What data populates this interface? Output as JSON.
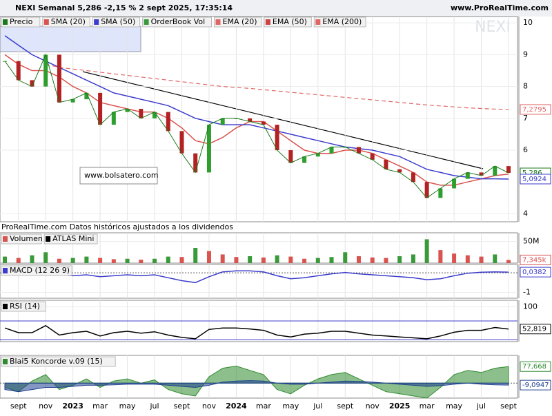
{
  "header": {
    "title": "NEXI Semanal 5,286 -2,15 % 2 sept 2025, 17:35:14",
    "site": "www.ProRealTime.com",
    "watermark": "NEXI"
  },
  "chart_data": [
    {
      "type": "price",
      "orderbook_label": "OrderBook Vol",
      "annotations": [
        "www.bolsatero.com",
        "ProRealTime.com Datos históricos ajustados a los dividendos"
      ],
      "categories": [
        null,
        "sept",
        null,
        "nov",
        null,
        "2023",
        null,
        "mar",
        null,
        "may",
        null,
        "jul",
        null,
        "sept",
        null,
        "nov",
        null,
        "2024",
        null,
        "mar",
        null,
        "may",
        null,
        "jul",
        null,
        "sept",
        null,
        "nov",
        null,
        "2025",
        null,
        "mar",
        null,
        "may",
        null,
        "jul",
        null,
        "sept"
      ],
      "ylim": [
        3.75,
        10.2
      ],
      "yticks": [
        4,
        6,
        7,
        8,
        9,
        10
      ],
      "series": [
        {
          "name": "Precio",
          "color": "#1a7a1a",
          "values": [
            8.8,
            8.2,
            8.0,
            9.0,
            7.5,
            7.6,
            7.8,
            6.8,
            7.2,
            7.3,
            7.0,
            7.2,
            6.6,
            5.9,
            5.3,
            6.8,
            7.0,
            7.0,
            6.9,
            6.8,
            6.0,
            5.6,
            5.8,
            5.9,
            6.1,
            6.1,
            5.9,
            5.7,
            5.4,
            5.3,
            5.0,
            4.5,
            4.8,
            5.1,
            5.3,
            5.2,
            5.5,
            5.286
          ],
          "value_labels": [
            null,
            null,
            null,
            null,
            null,
            null,
            null,
            null,
            null,
            null,
            null,
            null,
            null,
            null,
            null,
            null,
            null,
            null,
            null,
            null,
            null,
            null,
            null,
            null,
            null,
            null,
            null,
            null,
            null,
            null,
            null,
            null,
            null,
            null,
            null,
            null,
            null,
            "5,286"
          ]
        },
        {
          "name": "SMA (20)",
          "color": "#d9534f",
          "values": [
            9.0,
            8.7,
            8.5,
            8.5,
            8.3,
            8.0,
            7.8,
            7.5,
            7.4,
            7.3,
            7.2,
            7.2,
            7.0,
            6.7,
            6.3,
            6.2,
            6.4,
            6.7,
            6.9,
            6.9,
            6.6,
            6.3,
            6.0,
            5.9,
            5.9,
            6.0,
            6.0,
            5.9,
            5.7,
            5.5,
            5.3,
            5.0,
            4.9,
            4.9,
            5.0,
            5.1,
            5.2,
            5.25
          ]
        },
        {
          "name": "SMA (50)",
          "color": "#3b3bcc",
          "values": [
            9.6,
            9.3,
            9.0,
            8.8,
            8.6,
            8.4,
            8.2,
            8.0,
            7.8,
            7.7,
            7.6,
            7.5,
            7.4,
            7.2,
            7.0,
            6.9,
            6.8,
            6.8,
            6.8,
            6.7,
            6.6,
            6.5,
            6.4,
            6.3,
            6.2,
            6.1,
            6.05,
            6.0,
            5.9,
            5.8,
            5.6,
            5.4,
            5.3,
            5.2,
            5.15,
            5.1,
            5.1,
            5.0924
          ],
          "value_labels": [
            null,
            null,
            null,
            null,
            null,
            null,
            null,
            null,
            null,
            null,
            null,
            null,
            null,
            null,
            null,
            null,
            null,
            null,
            null,
            null,
            null,
            null,
            null,
            null,
            null,
            null,
            null,
            null,
            null,
            null,
            null,
            null,
            null,
            null,
            null,
            null,
            null,
            "5,0924"
          ]
        },
        {
          "name": "EMA (20)",
          "color": "#e06666"
        },
        {
          "name": "EMA (50)",
          "color": "#cc4444"
        },
        {
          "name": "EMA (200)",
          "color": "#e06666",
          "dashed": true,
          "values": [
            null,
            null,
            null,
            8.7,
            8.6,
            8.55,
            8.5,
            8.45,
            8.4,
            8.35,
            8.3,
            8.25,
            8.2,
            8.15,
            8.1,
            8.05,
            8.0,
            7.97,
            7.94,
            7.9,
            7.86,
            7.82,
            7.78,
            7.74,
            7.7,
            7.66,
            7.62,
            7.58,
            7.54,
            7.5,
            7.46,
            7.42,
            7.39,
            7.36,
            7.33,
            7.31,
            7.29,
            7.2795
          ],
          "value_labels": [
            null,
            null,
            null,
            null,
            null,
            null,
            null,
            null,
            null,
            null,
            null,
            null,
            null,
            null,
            null,
            null,
            null,
            null,
            null,
            null,
            null,
            null,
            null,
            null,
            null,
            null,
            null,
            null,
            null,
            null,
            null,
            null,
            null,
            null,
            null,
            null,
            null,
            "7,2795"
          ]
        }
      ]
    },
    {
      "type": "bar",
      "legend": [
        "Volumen",
        "ATLAS Mini"
      ],
      "ylim": [
        0,
        70
      ],
      "yticks": [
        {
          "value": 50,
          "label": "50M"
        }
      ],
      "series": [
        {
          "color": "#d9534f",
          "values": [
            15,
            12,
            18,
            25,
            10,
            12,
            15,
            12,
            9,
            10,
            8,
            10,
            15,
            14,
            35,
            28,
            20,
            14,
            16,
            13,
            18,
            15,
            10,
            12,
            14,
            25,
            16,
            13,
            12,
            16,
            20,
            55,
            30,
            22,
            18,
            15,
            20,
            7.345
          ],
          "value_labels": [
            null,
            null,
            null,
            null,
            null,
            null,
            null,
            null,
            null,
            null,
            null,
            null,
            null,
            null,
            null,
            null,
            null,
            null,
            null,
            null,
            null,
            null,
            null,
            null,
            null,
            null,
            null,
            null,
            null,
            null,
            null,
            null,
            null,
            null,
            null,
            null,
            null,
            "7,345k"
          ]
        }
      ]
    },
    {
      "type": "line",
      "legend": [
        "MACD (12 26 9)"
      ],
      "ylim": [
        -1.3,
        0.43
      ],
      "yticks": [
        {
          "value": -1,
          "label": "-1"
        }
      ],
      "zero": true,
      "series": [
        {
          "color": "#3b3bcc",
          "values": [
            0.2,
            0.1,
            -0.05,
            0.1,
            -0.1,
            -0.15,
            -0.1,
            -0.2,
            -0.15,
            -0.1,
            -0.15,
            -0.1,
            -0.25,
            -0.4,
            -0.5,
            -0.2,
            0.05,
            0.1,
            0.1,
            0.05,
            -0.15,
            -0.3,
            -0.25,
            -0.15,
            -0.05,
            0.02,
            -0.05,
            -0.1,
            -0.15,
            -0.2,
            -0.25,
            -0.35,
            -0.3,
            -0.15,
            -0.02,
            0.03,
            0.05,
            0.0382
          ],
          "value_labels": [
            null,
            null,
            null,
            null,
            null,
            null,
            null,
            null,
            null,
            null,
            null,
            null,
            null,
            null,
            null,
            null,
            null,
            null,
            null,
            null,
            null,
            null,
            null,
            null,
            null,
            null,
            null,
            null,
            null,
            null,
            null,
            null,
            null,
            null,
            null,
            null,
            null,
            "0,0382"
          ]
        }
      ]
    },
    {
      "type": "line",
      "legend": [
        "RSI (14)"
      ],
      "ylim": [
        26,
        114
      ],
      "yticks": [
        100
      ],
      "bands": [
        30,
        70
      ],
      "series": [
        {
          "color": "#000000",
          "values": [
            55,
            45,
            45,
            60,
            40,
            45,
            48,
            38,
            45,
            48,
            44,
            47,
            40,
            35,
            32,
            52,
            55,
            55,
            53,
            50,
            40,
            36,
            42,
            44,
            48,
            48,
            44,
            40,
            38,
            36,
            34,
            32,
            38,
            46,
            50,
            50,
            56,
            52.819
          ],
          "value_labels": [
            null,
            null,
            null,
            null,
            null,
            null,
            null,
            null,
            null,
            null,
            null,
            null,
            null,
            null,
            null,
            null,
            null,
            null,
            null,
            null,
            null,
            null,
            null,
            null,
            null,
            null,
            null,
            null,
            null,
            null,
            null,
            null,
            null,
            null,
            null,
            null,
            null,
            "52,819"
          ]
        }
      ]
    },
    {
      "type": "area",
      "legend": [
        "Blai5 Koncorde v.09 (15)"
      ],
      "ylim": [
        -70,
        130
      ],
      "zero": true,
      "series": [
        {
          "color": "#2e8b2e",
          "values": [
            -20,
            -40,
            10,
            40,
            -30,
            -10,
            20,
            -20,
            10,
            20,
            0,
            15,
            -30,
            -50,
            -60,
            30,
            70,
            80,
            60,
            40,
            -30,
            -50,
            -10,
            20,
            40,
            50,
            20,
            -10,
            -40,
            -50,
            -60,
            -70,
            -20,
            40,
            60,
            50,
            70,
            77.668
          ],
          "value_labels": [
            null,
            null,
            null,
            null,
            null,
            null,
            null,
            null,
            null,
            null,
            null,
            null,
            null,
            null,
            null,
            null,
            null,
            null,
            null,
            null,
            null,
            null,
            null,
            null,
            null,
            null,
            null,
            null,
            null,
            null,
            null,
            null,
            null,
            null,
            null,
            null,
            null,
            "77,668"
          ]
        },
        {
          "color": "#1f3f8f",
          "values": [
            -30,
            -40,
            -30,
            -20,
            -20,
            -15,
            -10,
            -10,
            -8,
            -5,
            -5,
            -5,
            -10,
            -15,
            -20,
            -10,
            5,
            10,
            12,
            10,
            0,
            -5,
            -5,
            0,
            5,
            10,
            8,
            5,
            0,
            -5,
            -10,
            -15,
            -12,
            -5,
            0,
            -5,
            -8,
            -9.0947
          ],
          "value_labels": [
            null,
            null,
            null,
            null,
            null,
            null,
            null,
            null,
            null,
            null,
            null,
            null,
            null,
            null,
            null,
            null,
            null,
            null,
            null,
            null,
            null,
            null,
            null,
            null,
            null,
            null,
            null,
            null,
            null,
            null,
            null,
            null,
            null,
            null,
            null,
            null,
            null,
            "-9,0947"
          ]
        }
      ]
    }
  ]
}
